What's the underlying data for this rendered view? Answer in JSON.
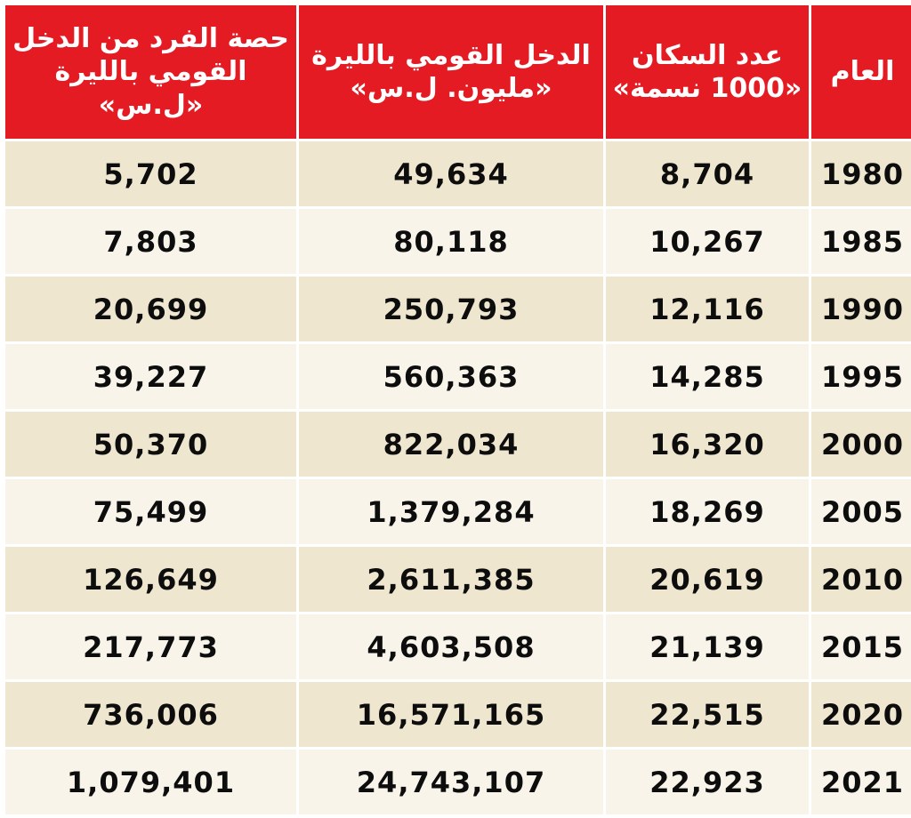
{
  "colors": {
    "header_bg": "#e41b23",
    "header_text": "#ffffff",
    "row_odd": "#efe6cf",
    "row_even": "#f8f4ea",
    "cell_text": "#0d0d0d"
  },
  "headers": {
    "year": "العام",
    "population": "عدد السكان «1000 نسمة»",
    "national_income": "الدخل القومي بالليرة «مليون. ل.س»",
    "per_capita": "حصة الفرد من الدخل القومي بالليرة «ل.س»"
  },
  "rows": [
    {
      "year": "1980",
      "population": "8,704",
      "national_income": "49,634",
      "per_capita": "5,702"
    },
    {
      "year": "1985",
      "population": "10,267",
      "national_income": "80,118",
      "per_capita": "7,803"
    },
    {
      "year": "1990",
      "population": "12,116",
      "national_income": "250,793",
      "per_capita": "20,699"
    },
    {
      "year": "1995",
      "population": "14,285",
      "national_income": "560,363",
      "per_capita": "39,227"
    },
    {
      "year": "2000",
      "population": "16,320",
      "national_income": "822,034",
      "per_capita": "50,370"
    },
    {
      "year": "2005",
      "population": "18,269",
      "national_income": "1,379,284",
      "per_capita": "75,499"
    },
    {
      "year": "2010",
      "population": "20,619",
      "national_income": "2,611,385",
      "per_capita": "126,649"
    },
    {
      "year": "2015",
      "population": "21,139",
      "national_income": "4,603,508",
      "per_capita": "217,773"
    },
    {
      "year": "2020",
      "population": "22,515",
      "national_income": "16,571,165",
      "per_capita": "736,006"
    },
    {
      "year": "2021",
      "population": "22,923",
      "national_income": "24,743,107",
      "per_capita": "1,079,401"
    }
  ]
}
